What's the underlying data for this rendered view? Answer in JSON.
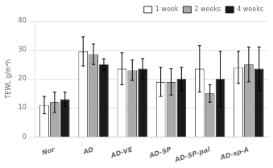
{
  "chart_data": {
    "type": "bar",
    "categories": [
      "Nor",
      "AD",
      "AD-VE",
      "AD-SP",
      "AD-SP-pal",
      "AD-sp-A"
    ],
    "series": [
      {
        "name": "1 week",
        "color": "white",
        "values": [
          11.0,
          29.5,
          23.5,
          19.0,
          23.5,
          24.0
        ],
        "errors": [
          3.0,
          5.0,
          5.5,
          5.0,
          8.0,
          5.5
        ]
      },
      {
        "name": "2 weeks",
        "color": "#aaaaaa",
        "values": [
          12.0,
          28.5,
          23.0,
          19.0,
          15.0,
          25.0
        ],
        "errors": [
          3.5,
          3.5,
          3.5,
          4.5,
          3.0,
          6.0
        ]
      },
      {
        "name": "4 weeks",
        "color": "#1a1a1a",
        "values": [
          13.0,
          25.0,
          23.5,
          20.0,
          20.0,
          23.5
        ],
        "errors": [
          2.5,
          2.0,
          3.5,
          4.0,
          9.5,
          7.5
        ]
      }
    ],
    "ylabel": "TEWL g/m²h",
    "ylim": [
      0,
      40
    ],
    "yticks": [
      0,
      10,
      20,
      30,
      40
    ],
    "grid": true,
    "legend": "upper right"
  }
}
